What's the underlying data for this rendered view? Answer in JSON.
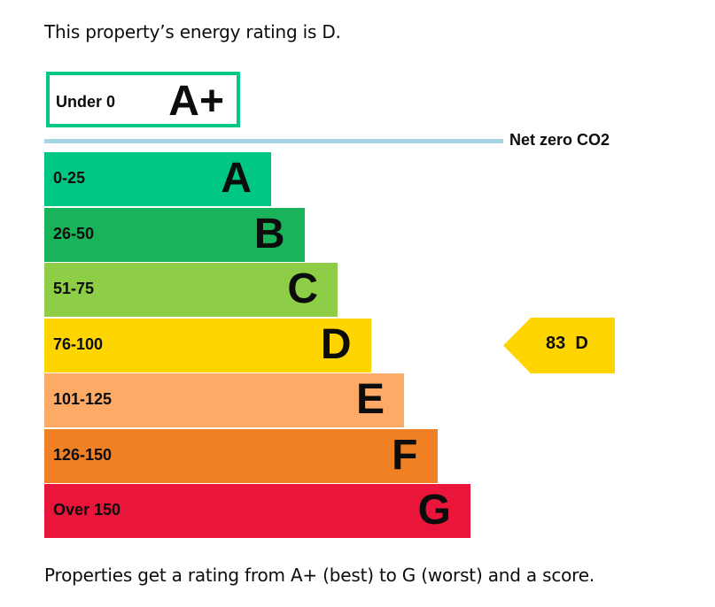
{
  "intro_text": "This property’s energy rating is D.",
  "footer_text": "Properties get a rating from A+ (best) to G (worst) and a score.",
  "chart_data": {
    "type": "bar",
    "title": "",
    "top_band": {
      "range": "Under 0",
      "letter": "A+",
      "border_color": "#00c781"
    },
    "net_zero_label": "Net zero CO2",
    "net_zero_color": "#a6d5e6",
    "bands": [
      {
        "range": "0-25",
        "letter": "A",
        "color": "#00c781"
      },
      {
        "range": "26-50",
        "letter": "B",
        "color": "#19b459"
      },
      {
        "range": "51-75",
        "letter": "C",
        "color": "#8dce46"
      },
      {
        "range": "76-100",
        "letter": "D",
        "color": "#ffd500"
      },
      {
        "range": "101-125",
        "letter": "E",
        "color": "#fcaa65"
      },
      {
        "range": "126-150",
        "letter": "F",
        "color": "#ef8023"
      },
      {
        "range": "Over 150",
        "letter": "G",
        "color": "#e9153b"
      }
    ],
    "current": {
      "score": 83,
      "letter": "D",
      "label": "83  D",
      "color": "#ffd500"
    }
  }
}
